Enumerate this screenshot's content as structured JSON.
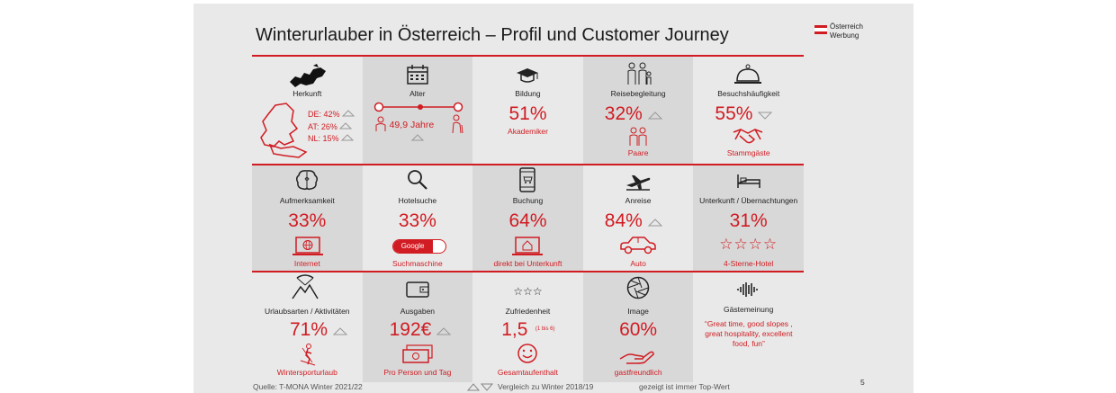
{
  "title": "Winterurlauber in Österreich – Profil und Customer Journey",
  "logo": {
    "line1": "Österreich",
    "line2": "Werbung"
  },
  "colors": {
    "accent": "#d01c22",
    "cell_shade": "#d8d8d8",
    "background": "#e9e9e9"
  },
  "row1": {
    "herkunft": {
      "label": "Herkunft",
      "de": "DE: 42%",
      "at": "AT: 26%",
      "nl": "NL: 15%"
    },
    "alter": {
      "label": "Alter",
      "value": "49,9 Jahre"
    },
    "bildung": {
      "label": "Bildung",
      "value": "51%",
      "sub": "Akademiker"
    },
    "reise": {
      "label": "Reisebegleitung",
      "value": "32%",
      "sub": "Paare"
    },
    "besuch": {
      "label": "Besuchshäufigkeit",
      "value": "55%",
      "sub": "Stammgäste"
    }
  },
  "row2": {
    "aufmerk": {
      "label": "Aufmerksamkeit",
      "value": "33%",
      "sub": "Internet"
    },
    "hotel": {
      "label": "Hotelsuche",
      "value": "33%",
      "google": "Google",
      "sub": "Suchmaschine"
    },
    "buchung": {
      "label": "Buchung",
      "value": "64%",
      "sub": "direkt bei Unterkunft"
    },
    "anreise": {
      "label": "Anreise",
      "value": "84%",
      "sub": "Auto"
    },
    "unterkunft": {
      "label": "Unterkunft / Übernachtungen",
      "value": "31%",
      "stars": "☆☆☆☆",
      "sub": "4-Sterne-Hotel"
    }
  },
  "row3": {
    "urlaub": {
      "label": "Urlaubsarten / Aktivitäten",
      "value": "71%",
      "sub": "Wintersporturlaub"
    },
    "ausgaben": {
      "label": "Ausgaben",
      "value": "192€",
      "sub": "Pro Person und Tag"
    },
    "zufried": {
      "label": "Zufriedenheit",
      "stars": "☆☆☆",
      "value": "1,5",
      "scale": "(1 bis 6)",
      "sub": "Gesamtaufenthalt"
    },
    "image": {
      "label": "Image",
      "value": "60%",
      "sub": "gastfreundlich"
    },
    "gaeste": {
      "label": "Gästemeinung",
      "quote": "“Great time, good slopes , great hospitality, excellent food, fun”"
    }
  },
  "footer": {
    "source": "Quelle: T-MONA Winter 2021/22",
    "comparison": "Vergleich zu Winter 2018/19",
    "note": "gezeigt ist immer Top-Wert",
    "page": "5"
  }
}
